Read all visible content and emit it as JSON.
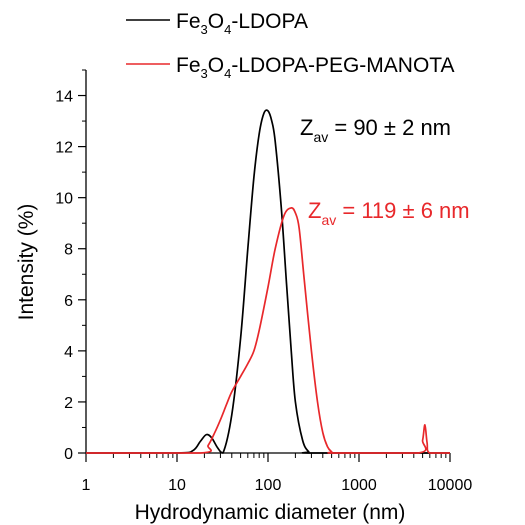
{
  "chart_data": {
    "type": "line",
    "xlabel": "Hydrodynamic diameter (nm)",
    "ylabel": "Intensity (%)",
    "x_scale": "log",
    "xlim": [
      1,
      10000
    ],
    "ylim": [
      0,
      15
    ],
    "x_ticks": [
      1,
      10,
      100,
      1000,
      10000
    ],
    "x_tick_labels": [
      "1",
      "10",
      "100",
      "1000",
      "10000"
    ],
    "y_ticks": [
      0,
      2,
      4,
      6,
      8,
      10,
      12,
      14
    ],
    "y_tick_labels": [
      "0",
      "2",
      "4",
      "6",
      "8",
      "10",
      "12",
      "14"
    ],
    "grid": false,
    "legend_position": "top",
    "series": [
      {
        "name": "Fe3O4-LDOPA",
        "name_parts": {
          "a": "Fe",
          "s1": "3",
          "b": "O",
          "s2": "4",
          "c": "-LDOPA"
        },
        "color": "#000000",
        "x": [
          1,
          10,
          15,
          18,
          21,
          24,
          28,
          32,
          40,
          50,
          60,
          70,
          80,
          90,
          100,
          110,
          120,
          140,
          160,
          180,
          200,
          240,
          280,
          320,
          10000
        ],
        "y": [
          0,
          0,
          0.1,
          0.45,
          0.72,
          0.6,
          0.2,
          0,
          1.5,
          4.5,
          8.0,
          10.8,
          12.5,
          13.3,
          13.4,
          13.0,
          12.2,
          9.6,
          6.6,
          4.0,
          2.0,
          0.5,
          0.05,
          0,
          0
        ]
      },
      {
        "name": "Fe3O4-LDOPA-PEG-MANOTA",
        "name_parts": {
          "a": "Fe",
          "s1": "3",
          "b": "O",
          "s2": "4",
          "c": "-LDOPA-PEG-MANOTA"
        },
        "color": "#e8282b",
        "x": [
          1,
          18,
          22,
          26,
          30,
          35,
          40,
          50,
          60,
          70,
          80,
          100,
          120,
          150,
          180,
          200,
          220,
          250,
          300,
          350,
          400,
          450,
          500,
          550,
          4500,
          5000,
          5300,
          5600,
          6000,
          10000
        ],
        "y": [
          0,
          0,
          0.3,
          0.8,
          1.3,
          1.9,
          2.4,
          3.0,
          3.5,
          4.0,
          4.8,
          6.5,
          8.0,
          9.3,
          9.6,
          9.4,
          8.8,
          6.8,
          4.0,
          2.0,
          0.8,
          0.25,
          0.05,
          0,
          0,
          0.5,
          1.1,
          0.4,
          0,
          0
        ]
      }
    ],
    "annotations": [
      {
        "main": "Z",
        "sub": "av",
        "rest": " = 90 ± 2 nm",
        "color": "#000000"
      },
      {
        "main": "Z",
        "sub": "av",
        "rest": " = 119 ± 6 nm",
        "color": "#e8282b"
      }
    ]
  }
}
